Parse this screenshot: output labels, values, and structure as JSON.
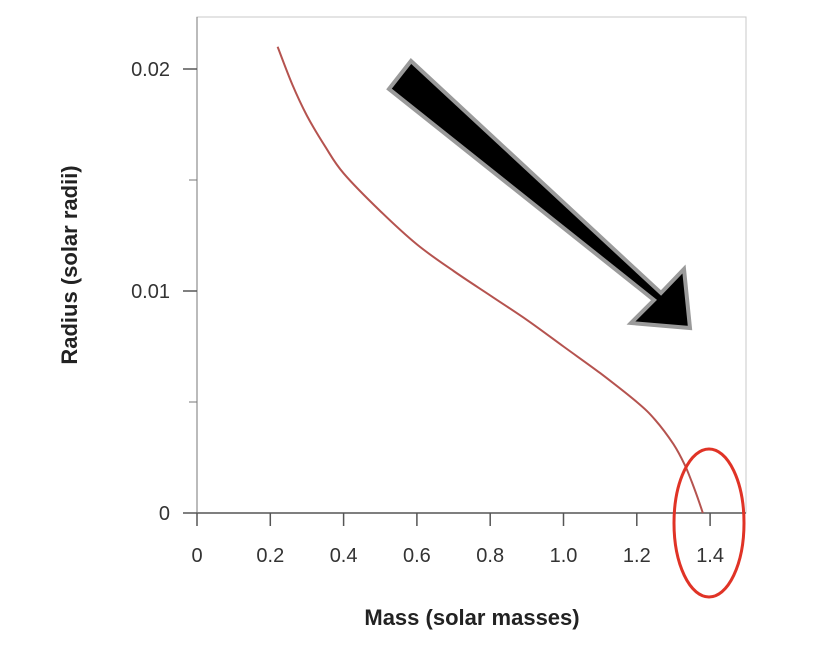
{
  "chart_data": {
    "type": "line",
    "xlabel": "Mass (solar masses)",
    "ylabel": "Radius (solar radii)",
    "xlim": [
      0,
      1.5
    ],
    "ylim": [
      0,
      0.022
    ],
    "x_ticks": [
      0,
      0.2,
      0.4,
      0.6,
      0.8,
      1.0,
      1.2,
      1.4
    ],
    "x_tick_labels": [
      "0",
      "0.2",
      "0.4",
      "0.6",
      "0.8",
      "1.0",
      "1.2",
      "1.4"
    ],
    "y_ticks": [
      0,
      0.01,
      0.02
    ],
    "y_tick_labels": [
      "0",
      "0.01",
      "0.02"
    ],
    "y_minor_ticks": [
      0.005,
      0.015
    ],
    "grid": false,
    "series": [
      {
        "color": "#b5534f",
        "x": [
          0.22,
          0.26,
          0.3,
          0.35,
          0.4,
          0.5,
          0.6,
          0.7,
          0.8,
          0.9,
          1.0,
          1.1,
          1.2,
          1.25,
          1.3,
          1.33,
          1.35,
          1.37,
          1.38
        ],
        "y": [
          0.021,
          0.0193,
          0.0179,
          0.0165,
          0.0153,
          0.0136,
          0.0121,
          0.0109,
          0.0098,
          0.0087,
          0.0075,
          0.0063,
          0.005,
          0.0042,
          0.0031,
          0.0022,
          0.0014,
          0.0005,
          0.0
        ]
      }
    ],
    "annotations": [
      {
        "type": "arrow",
        "color": "#000000",
        "outline": "#9a9a9a",
        "direction": "down-right"
      },
      {
        "type": "ellipse",
        "color": "#e03326",
        "around": "x=1.38, y=0"
      }
    ]
  }
}
